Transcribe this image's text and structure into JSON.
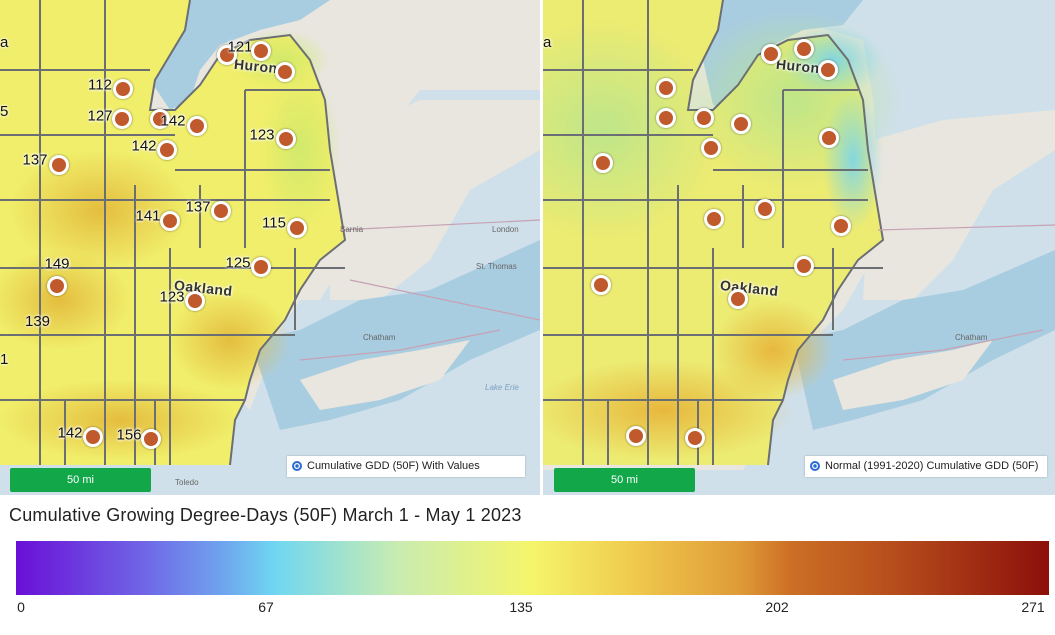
{
  "left_panel": {
    "legend_label": "Cumulative GDD (50F) With Values",
    "scale_label": "50 mi",
    "county_label": "Oakland",
    "lake_label": "Huron",
    "stations": [
      {
        "value": "121"
      },
      {
        "value": ""
      },
      {
        "value": ""
      },
      {
        "value": "112"
      },
      {
        "value": "127"
      },
      {
        "value": ""
      },
      {
        "value": "142"
      },
      {
        "value": "142"
      },
      {
        "value": "123"
      },
      {
        "value": "137"
      },
      {
        "value": "141"
      },
      {
        "value": "137"
      },
      {
        "value": "115"
      },
      {
        "value": "149"
      },
      {
        "value": "125"
      },
      {
        "value": "123"
      },
      {
        "value": "142"
      },
      {
        "value": "156"
      }
    ],
    "edge_labels": {
      "a": "a",
      "five": "5",
      "one_thirty_nine": "139",
      "one": "1"
    }
  },
  "right_panel": {
    "legend_label": "Normal (1991-2020) Cumulative GDD (50F)",
    "scale_label": "50 mi",
    "county_label": "Oakland",
    "lake_label": "Huron",
    "edge_label": "a"
  },
  "city_labels": {
    "london": "London",
    "st_thomas": "St. Thomas",
    "chatham": "Chatham",
    "lake_erie": "Lake Erie",
    "sarnia": "Sarnia",
    "toledo": "Toledo"
  },
  "chart_title": "Cumulative Growing Degree-Days (50F) March 1 - May 1 2023",
  "color_scale": {
    "ticks": [
      "0",
      "67",
      "135",
      "202",
      "271"
    ],
    "min": 0,
    "max": 271,
    "colors": {
      "low": "#6a0fd6",
      "mid": "#f5f56a",
      "high": "#8c0f0a"
    }
  },
  "colors": {
    "station_marker": "#c0592b",
    "scale_bar": "#12a84a",
    "legend_radio": "#2a6bd6"
  }
}
